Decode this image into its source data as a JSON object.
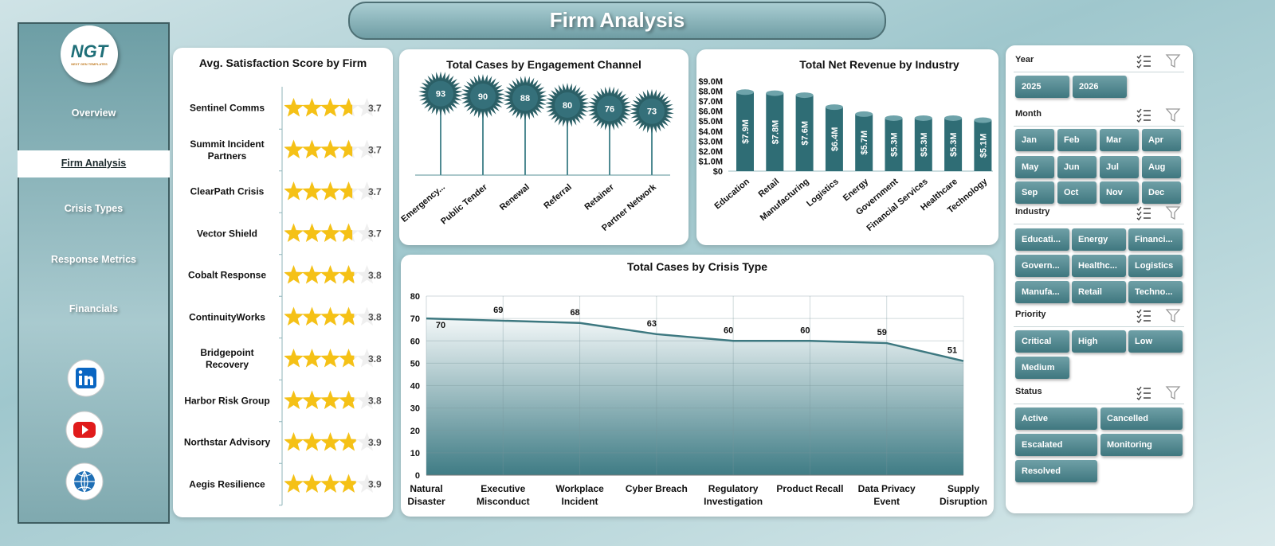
{
  "header": {
    "title": "Firm Analysis"
  },
  "logo": {
    "text": "NGT",
    "tagline": "NEXT GEN TEMPLATES"
  },
  "nav": [
    {
      "label": "Overview",
      "active": false
    },
    {
      "label": "Firm Analysis",
      "active": true
    },
    {
      "label": "Crisis Types",
      "active": false
    },
    {
      "label": "Response Metrics",
      "active": false
    },
    {
      "label": "Financials",
      "active": false
    }
  ],
  "slicers": [
    {
      "title": "Year",
      "items": [
        "2025",
        "2026"
      ]
    },
    {
      "title": "Month",
      "items": [
        "Jan",
        "Feb",
        "Mar",
        "Apr",
        "May",
        "Jun",
        "Jul",
        "Aug",
        "Sep",
        "Oct",
        "Nov",
        "Dec"
      ]
    },
    {
      "title": "Industry",
      "items": [
        "Educati...",
        "Energy",
        "Financi...",
        "Govern...",
        "Healthc...",
        "Logistics",
        "Manufa...",
        "Retail",
        "Techno..."
      ]
    },
    {
      "title": "Priority",
      "items": [
        "Critical",
        "High",
        "Low",
        "Medium"
      ]
    },
    {
      "title": "Status",
      "items": [
        "Active",
        "Cancelled",
        "Escalated",
        "Monitoring",
        "Resolved"
      ]
    }
  ],
  "chart_data": [
    {
      "type": "rating",
      "title": "Avg. Satisfaction Score by Firm",
      "categories": [
        "Sentinel Comms",
        "Summit Incident Partners",
        "ClearPath Crisis",
        "Vector Shield",
        "Cobalt Response",
        "ContinuityWorks",
        "Bridgepoint Recovery",
        "Harbor Risk Group",
        "Northstar Advisory",
        "Aegis Resilience"
      ],
      "values": [
        3.7,
        3.7,
        3.7,
        3.7,
        3.8,
        3.8,
        3.8,
        3.8,
        3.9,
        3.9
      ],
      "color": "#f5c116"
    },
    {
      "type": "lollipop",
      "title": "Total Cases by Engagement Channel",
      "categories": [
        "Emergency...",
        "Public Tender",
        "Renewal",
        "Referral",
        "Retainer",
        "Partner Network"
      ],
      "values": [
        93,
        90,
        88,
        80,
        76,
        73
      ],
      "color": "#2b5f66"
    },
    {
      "type": "bar",
      "title": "Total Net Revenue by Industry",
      "categories": [
        "Education",
        "Retail",
        "Manufacturing",
        "Logistics",
        "Energy",
        "Government",
        "Financial Services",
        "Healthcare",
        "Technology"
      ],
      "values": [
        7900000,
        7800000,
        7600000,
        6400000,
        5700000,
        5300000,
        5300000,
        5300000,
        5100000
      ],
      "value_labels": [
        "$7.9M",
        "$7.8M",
        "$7.6M",
        "$6.4M",
        "$5.7M",
        "$5.3M",
        "$5.3M",
        "$5.3M",
        "$5.1M"
      ],
      "ylim": [
        0,
        9000000
      ],
      "yticks": [
        {
          "value": 0,
          "label": "$0"
        },
        {
          "value": 1000000,
          "label": "$1.0M"
        },
        {
          "value": 2000000,
          "label": "$2.0M"
        },
        {
          "value": 3000000,
          "label": "$3.0M"
        },
        {
          "value": 4000000,
          "label": "$4.0M"
        },
        {
          "value": 5000000,
          "label": "$5.0M"
        },
        {
          "value": 6000000,
          "label": "$6.0M"
        },
        {
          "value": 7000000,
          "label": "$7.0M"
        },
        {
          "value": 8000000,
          "label": "$8.0M"
        },
        {
          "value": 9000000,
          "label": "$9.0M"
        }
      ],
      "color": "#2f6d75"
    },
    {
      "type": "area",
      "title": "Total Cases by Crisis Type",
      "categories": [
        "Natural Disaster",
        "Executive Misconduct",
        "Workplace Incident",
        "Cyber Breach",
        "Regulatory Investigation",
        "Product Recall",
        "Data Privacy Event",
        "Supply Disruption"
      ],
      "values": [
        70,
        69,
        68,
        63,
        60,
        60,
        59,
        51
      ],
      "ylim": [
        0,
        80
      ],
      "yticks": [
        0,
        10,
        20,
        30,
        40,
        50,
        60,
        70,
        80
      ],
      "grid": true,
      "color": "#3d7880"
    }
  ]
}
